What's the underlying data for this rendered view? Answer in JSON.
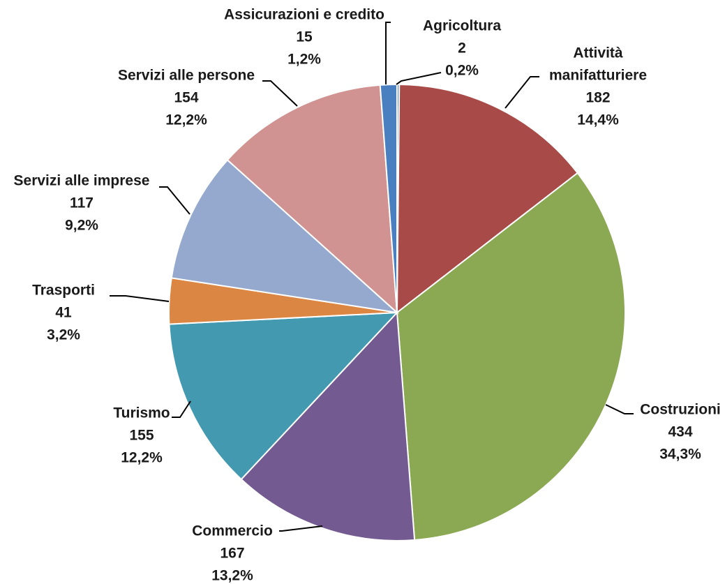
{
  "chart_data": {
    "type": "pie",
    "slices": [
      {
        "label": "Agricoltura",
        "label_lines": [
          "Agricoltura"
        ],
        "value": 2,
        "percent": "0,2%",
        "color": "#4f81bd"
      },
      {
        "label": "Attività manifatturiere",
        "label_lines": [
          "Attività",
          "manifatturiere"
        ],
        "value": 182,
        "percent": "14,4%",
        "color": "#a84a48"
      },
      {
        "label": "Costruzioni",
        "label_lines": [
          "Costruzioni"
        ],
        "value": 434,
        "percent": "34,3%",
        "color": "#8ba852"
      },
      {
        "label": "Commercio",
        "label_lines": [
          "Commercio"
        ],
        "value": 167,
        "percent": "13,2%",
        "color": "#735a90"
      },
      {
        "label": "Turismo",
        "label_lines": [
          "Turismo"
        ],
        "value": 155,
        "percent": "12,2%",
        "color": "#4399b0"
      },
      {
        "label": "Trasporti",
        "label_lines": [
          "Trasporti"
        ],
        "value": 41,
        "percent": "3,2%",
        "color": "#dc8643"
      },
      {
        "label": "Servizi alle imprese",
        "label_lines": [
          "Servizi alle imprese"
        ],
        "value": 117,
        "percent": "9,2%",
        "color": "#95a9cf"
      },
      {
        "label": "Servizi alle persone",
        "label_lines": [
          "Servizi alle persone"
        ],
        "value": 154,
        "percent": "12,2%",
        "color": "#d19392"
      },
      {
        "label": "Assicurazioni e credito",
        "label_lines": [
          "Assicurazioni e credito"
        ],
        "value": 15,
        "percent": "1,2%",
        "color": "#4a7fc0"
      }
    ],
    "start_angle": "12 o'clock",
    "direction": "clockwise",
    "legend": "none"
  }
}
